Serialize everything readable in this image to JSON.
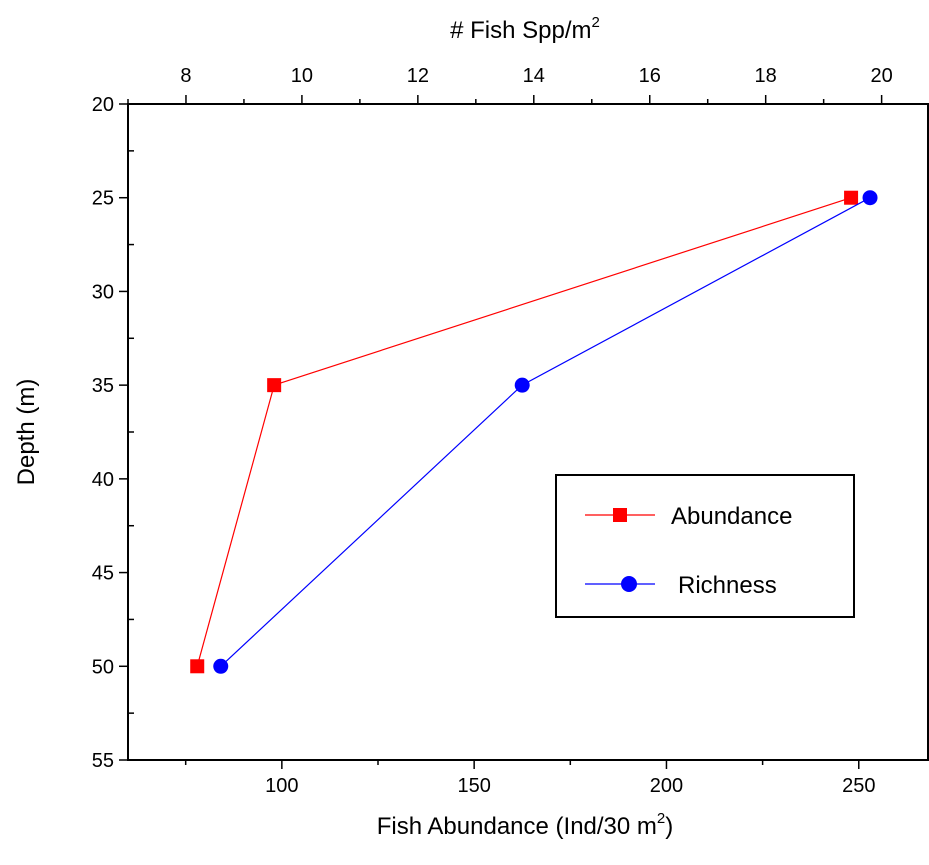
{
  "chart_data": {
    "type": "line",
    "y_axis": {
      "label": "Depth (m)",
      "ticks": [
        "20",
        "25",
        "30",
        "35",
        "40",
        "45",
        "50",
        "55"
      ],
      "range": [
        20,
        55
      ],
      "inverted": true
    },
    "x_axis_bottom": {
      "label": "Fish Abundance (Ind/30 m",
      "label_sup": "2",
      "label_end": ")",
      "ticks": [
        "100",
        "150",
        "200",
        "250"
      ],
      "range": [
        60,
        268
      ]
    },
    "x_axis_top": {
      "label": "# Fish Spp/m",
      "label_sup": "2",
      "ticks": [
        "8",
        "10",
        "12",
        "14",
        "16",
        "18",
        "20"
      ],
      "range": [
        7,
        20.8
      ]
    },
    "series": [
      {
        "name": "Abundance",
        "axis": "bottom",
        "color": "#ff0000",
        "marker": "square",
        "points": [
          {
            "x": 248,
            "depth": 25
          },
          {
            "x": 98,
            "depth": 35
          },
          {
            "x": 78,
            "depth": 50
          }
        ]
      },
      {
        "name": "Richness",
        "axis": "top",
        "color": "#0000ff",
        "marker": "circle",
        "points": [
          {
            "x": 19.8,
            "depth": 25
          },
          {
            "x": 13.8,
            "depth": 35
          },
          {
            "x": 8.6,
            "depth": 50
          }
        ]
      }
    ],
    "legend_position": "right-middle",
    "grid": false
  }
}
